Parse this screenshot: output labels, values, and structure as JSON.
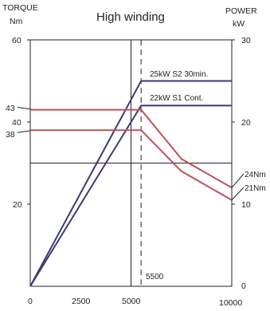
{
  "chart_data": {
    "type": "line",
    "title": "High winding",
    "left_axis": {
      "label": "TORQUE",
      "unit": "Nm",
      "range": [
        0,
        60
      ],
      "ticks": [
        "60",
        "40",
        "20"
      ]
    },
    "right_axis": {
      "label": "POWER",
      "unit": "kW",
      "range": [
        0,
        30
      ],
      "ticks": [
        "30",
        "20",
        "10",
        "0"
      ]
    },
    "x_axis": {
      "range": [
        0,
        10000
      ],
      "ticks": [
        "0",
        "2500",
        "5000",
        "10000"
      ]
    },
    "torque_markers": [
      "43",
      "38"
    ],
    "series": [
      {
        "name": "25kW  S2 30min.",
        "axis": "power",
        "x": [
          0,
          5500,
          10000
        ],
        "y": [
          0,
          25,
          25
        ],
        "color": "#3a3a78"
      },
      {
        "name": "22kW  S1 Cont.",
        "axis": "power",
        "x": [
          0,
          5500,
          10000
        ],
        "y": [
          0,
          22,
          22
        ],
        "color": "#3a3a78"
      },
      {
        "name": "",
        "axis": "torque",
        "x": [
          0,
          5500,
          7500,
          10000
        ],
        "y": [
          43,
          43,
          31,
          24
        ],
        "color": "#c0505a"
      },
      {
        "name": "",
        "axis": "torque",
        "x": [
          0,
          5500,
          7500,
          10000
        ],
        "y": [
          38,
          38,
          28,
          21
        ],
        "color": "#c0505a"
      }
    ],
    "end_labels": [
      "24Nm",
      "21Nm"
    ],
    "vertical_marker": {
      "x": 5500,
      "label": "5500"
    },
    "reference_lines": {
      "x": 5000,
      "torque": 30
    },
    "grid": false
  }
}
